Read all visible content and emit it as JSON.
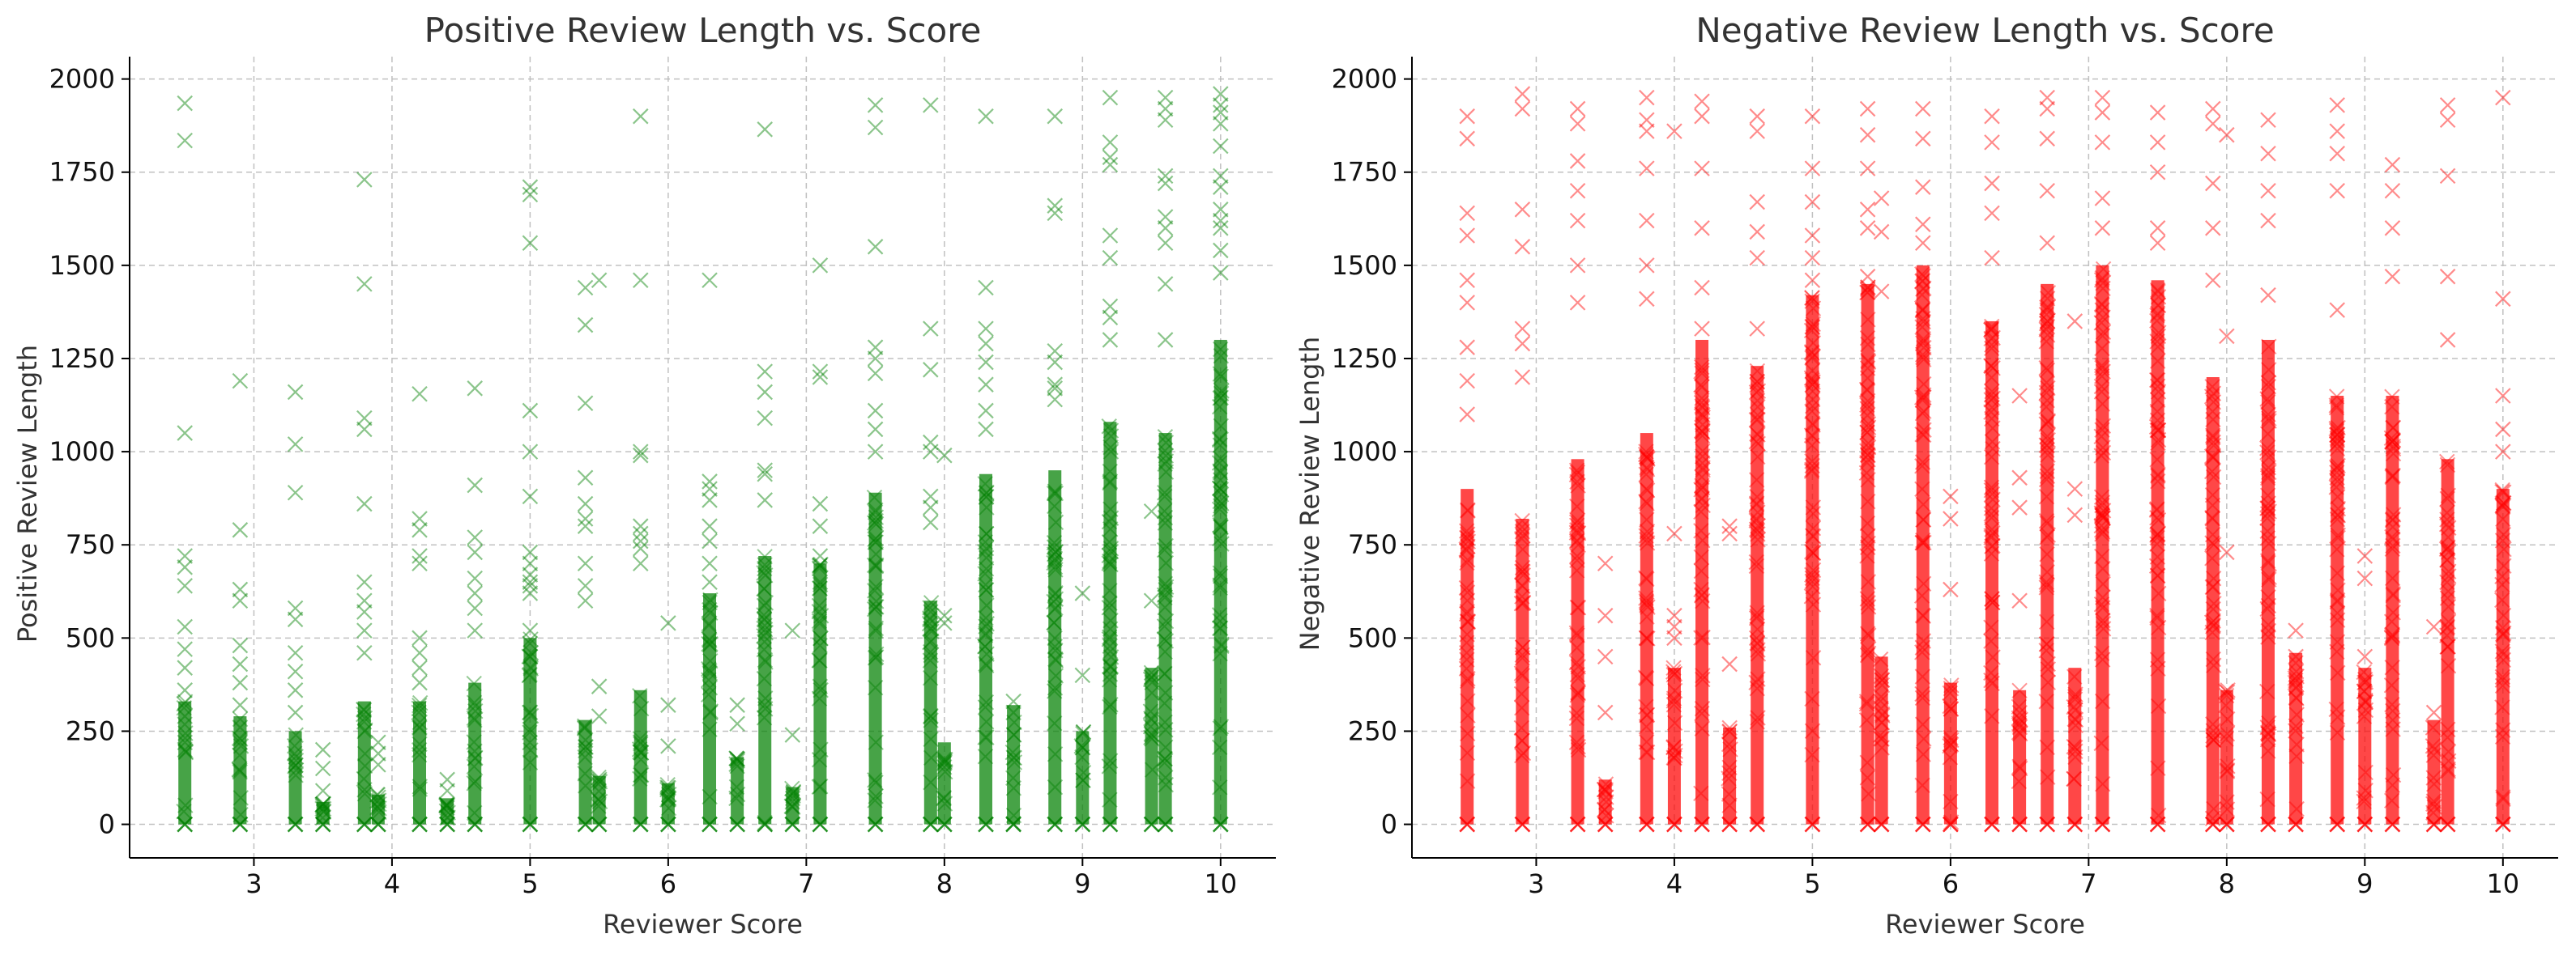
{
  "chart_data": [
    {
      "type": "scatter",
      "title": "Positive Review Length vs. Score",
      "xlabel": "Reviewer Score",
      "ylabel": "Positive Review Length",
      "xlim": [
        2.1,
        10.4
      ],
      "ylim": [
        -90,
        2060
      ],
      "xticks": [
        3,
        4,
        5,
        6,
        7,
        8,
        9,
        10
      ],
      "yticks": [
        0,
        250,
        500,
        750,
        1000,
        1250,
        1500,
        1750,
        2000
      ],
      "grid": true,
      "marker": "x",
      "color": "#008000",
      "opacity": 0.45,
      "score_levels": [
        2.5,
        2.9,
        3.3,
        3.5,
        3.8,
        3.9,
        4.2,
        4.4,
        4.6,
        5.0,
        5.4,
        5.5,
        5.8,
        6.0,
        6.3,
        6.5,
        6.7,
        6.9,
        7.1,
        7.5,
        7.9,
        8.0,
        8.3,
        8.5,
        8.8,
        9.0,
        9.2,
        9.5,
        9.6,
        10.0
      ],
      "x": [
        2.5,
        2.5,
        2.5,
        2.5,
        2.5,
        2.5,
        2.5,
        2.5,
        2.5,
        2.5,
        2.5,
        2.9,
        2.9,
        2.9,
        2.9,
        2.9,
        2.9,
        2.9,
        2.9,
        2.9,
        2.9,
        3.3,
        3.3,
        3.3,
        3.3,
        3.3,
        3.3,
        3.3,
        3.3,
        3.3,
        3.5,
        3.5,
        3.5,
        3.8,
        3.8,
        3.8,
        3.8,
        3.8,
        3.8,
        3.8,
        3.8,
        3.8,
        3.8,
        3.9,
        3.9,
        3.9,
        4.2,
        4.2,
        4.2,
        4.2,
        4.2,
        4.2,
        4.2,
        4.2,
        4.2,
        4.4,
        4.4,
        4.6,
        4.6,
        4.6,
        4.6,
        4.6,
        4.6,
        4.6,
        4.6,
        5.0,
        5.0,
        5.0,
        5.0,
        5.0,
        5.0,
        5.0,
        5.0,
        5.0,
        5.0,
        5.0,
        5.0,
        5.0,
        5.4,
        5.4,
        5.4,
        5.4,
        5.4,
        5.4,
        5.4,
        5.4,
        5.4,
        5.4,
        5.5,
        5.5,
        5.5,
        5.8,
        5.8,
        5.8,
        5.8,
        5.8,
        5.8,
        5.8,
        5.8,
        5.8,
        6.0,
        6.0,
        6.0,
        6.3,
        6.3,
        6.3,
        6.3,
        6.3,
        6.3,
        6.3,
        6.3,
        6.5,
        6.5,
        6.7,
        6.7,
        6.7,
        6.7,
        6.7,
        6.7,
        6.7,
        6.9,
        6.9,
        7.1,
        7.1,
        7.1,
        7.1,
        7.1,
        7.1,
        7.1,
        7.5,
        7.5,
        7.5,
        7.5,
        7.5,
        7.5,
        7.5,
        7.5,
        7.5,
        7.9,
        7.9,
        7.9,
        7.9,
        7.9,
        7.9,
        7.9,
        7.9,
        8.0,
        8.0,
        8.0,
        8.3,
        8.3,
        8.3,
        8.3,
        8.3,
        8.3,
        8.3,
        8.3,
        8.5,
        8.5,
        8.8,
        8.8,
        8.8,
        8.8,
        8.8,
        8.8,
        8.8,
        8.8,
        9.0,
        9.0,
        9.2,
        9.2,
        9.2,
        9.2,
        9.2,
        9.2,
        9.2,
        9.2,
        9.2,
        9.5,
        9.5,
        9.6,
        9.6,
        9.6,
        9.6,
        9.6,
        9.6,
        9.6,
        9.6,
        9.6,
        9.6,
        10.0,
        10.0,
        10.0,
        10.0,
        10.0,
        10.0,
        10.0,
        10.0,
        10.0,
        10.0,
        10.0,
        10.0
      ],
      "y": [
        1935,
        1835,
        1050,
        720,
        690,
        640,
        530,
        470,
        420,
        360,
        290,
        1190,
        790,
        630,
        600,
        480,
        430,
        380,
        320,
        260,
        220,
        1160,
        1020,
        890,
        580,
        550,
        460,
        410,
        360,
        300,
        200,
        150,
        90,
        1730,
        1450,
        1090,
        1060,
        860,
        650,
        600,
        570,
        520,
        460,
        220,
        190,
        160,
        1155,
        820,
        790,
        720,
        700,
        500,
        460,
        420,
        380,
        120,
        90,
        1170,
        910,
        770,
        730,
        660,
        620,
        580,
        520,
        1710,
        1690,
        1560,
        1110,
        1000,
        880,
        730,
        700,
        670,
        650,
        640,
        620,
        520,
        1440,
        1340,
        1130,
        930,
        860,
        820,
        800,
        700,
        640,
        600,
        1460,
        370,
        290,
        1900,
        1460,
        1000,
        990,
        800,
        780,
        760,
        740,
        700,
        540,
        320,
        210,
        1460,
        920,
        900,
        870,
        800,
        760,
        700,
        650,
        320,
        270,
        1865,
        1215,
        1160,
        1090,
        950,
        940,
        870,
        520,
        240,
        1500,
        1215,
        1200,
        860,
        800,
        720,
        650,
        1930,
        1870,
        1550,
        1280,
        1250,
        1210,
        1110,
        1060,
        1000,
        1930,
        1330,
        1220,
        1025,
        1000,
        880,
        850,
        810,
        990,
        560,
        540,
        1900,
        1440,
        1330,
        1290,
        1240,
        1180,
        1110,
        1060,
        330,
        300,
        1900,
        1660,
        1640,
        1270,
        1240,
        1180,
        1170,
        1140,
        620,
        400,
        1950,
        1830,
        1790,
        1770,
        1580,
        1520,
        1390,
        1360,
        1300,
        840,
        600,
        1950,
        1920,
        1890,
        1740,
        1720,
        1630,
        1600,
        1560,
        1450,
        1300,
        1960,
        1930,
        1910,
        1880,
        1820,
        1740,
        1710,
        1650,
        1620,
        1600,
        1540,
        1480
      ],
      "dense_columns": [
        {
          "x": 2.5,
          "y_max": 330
        },
        {
          "x": 2.9,
          "y_max": 290
        },
        {
          "x": 3.3,
          "y_max": 250
        },
        {
          "x": 3.5,
          "y_max": 60
        },
        {
          "x": 3.8,
          "y_max": 330
        },
        {
          "x": 3.9,
          "y_max": 80
        },
        {
          "x": 4.2,
          "y_max": 330
        },
        {
          "x": 4.4,
          "y_max": 70
        },
        {
          "x": 4.6,
          "y_max": 380
        },
        {
          "x": 5.0,
          "y_max": 500
        },
        {
          "x": 5.4,
          "y_max": 280
        },
        {
          "x": 5.5,
          "y_max": 130
        },
        {
          "x": 5.8,
          "y_max": 360
        },
        {
          "x": 6.0,
          "y_max": 110
        },
        {
          "x": 6.3,
          "y_max": 620
        },
        {
          "x": 6.5,
          "y_max": 180
        },
        {
          "x": 6.7,
          "y_max": 720
        },
        {
          "x": 6.9,
          "y_max": 100
        },
        {
          "x": 7.1,
          "y_max": 700
        },
        {
          "x": 7.5,
          "y_max": 890
        },
        {
          "x": 7.9,
          "y_max": 600
        },
        {
          "x": 8.0,
          "y_max": 220
        },
        {
          "x": 8.3,
          "y_max": 940
        },
        {
          "x": 8.5,
          "y_max": 320
        },
        {
          "x": 8.8,
          "y_max": 950
        },
        {
          "x": 9.0,
          "y_max": 250
        },
        {
          "x": 9.2,
          "y_max": 1080
        },
        {
          "x": 9.5,
          "y_max": 420
        },
        {
          "x": 9.6,
          "y_max": 1050
        },
        {
          "x": 10.0,
          "y_max": 1300
        }
      ]
    },
    {
      "type": "scatter",
      "title": "Negative Review Length vs. Score",
      "xlabel": "Reviewer Score",
      "ylabel": "Negative Review Length",
      "xlim": [
        2.1,
        10.4
      ],
      "ylim": [
        -90,
        2060
      ],
      "xticks": [
        3,
        4,
        5,
        6,
        7,
        8,
        9,
        10
      ],
      "yticks": [
        0,
        250,
        500,
        750,
        1000,
        1250,
        1500,
        1750,
        2000
      ],
      "grid": true,
      "marker": "x",
      "color": "#ff0000",
      "opacity": 0.45,
      "score_levels": [
        2.5,
        2.9,
        3.3,
        3.5,
        3.8,
        4.0,
        4.2,
        4.4,
        4.6,
        5.0,
        5.4,
        5.5,
        5.8,
        6.0,
        6.3,
        6.5,
        6.7,
        6.9,
        7.1,
        7.5,
        7.9,
        8.0,
        8.3,
        8.5,
        8.8,
        9.0,
        9.2,
        9.5,
        9.6,
        10.0
      ],
      "x": [
        2.5,
        2.5,
        2.5,
        2.5,
        2.5,
        2.5,
        2.5,
        2.5,
        2.5,
        2.9,
        2.9,
        2.9,
        2.9,
        2.9,
        2.9,
        2.9,
        3.3,
        3.3,
        3.3,
        3.3,
        3.3,
        3.3,
        3.3,
        3.5,
        3.5,
        3.5,
        3.5,
        3.8,
        3.8,
        3.8,
        3.8,
        3.8,
        3.8,
        3.8,
        4.0,
        4.0,
        4.0,
        4.0,
        4.0,
        4.2,
        4.2,
        4.2,
        4.2,
        4.2,
        4.2,
        4.4,
        4.4,
        4.4,
        4.6,
        4.6,
        4.6,
        4.6,
        4.6,
        4.6,
        5.0,
        5.0,
        5.0,
        5.0,
        5.0,
        5.0,
        5.4,
        5.4,
        5.4,
        5.4,
        5.4,
        5.4,
        5.5,
        5.5,
        5.5,
        5.8,
        5.8,
        5.8,
        5.8,
        5.8,
        6.0,
        6.0,
        6.0,
        6.3,
        6.3,
        6.3,
        6.3,
        6.3,
        6.5,
        6.5,
        6.5,
        6.5,
        6.7,
        6.7,
        6.7,
        6.7,
        6.7,
        6.9,
        6.9,
        6.9,
        7.1,
        7.1,
        7.1,
        7.1,
        7.1,
        7.5,
        7.5,
        7.5,
        7.5,
        7.5,
        7.9,
        7.9,
        7.9,
        7.9,
        7.9,
        8.0,
        8.0,
        8.0,
        8.3,
        8.3,
        8.3,
        8.3,
        8.3,
        8.5,
        8.5,
        8.8,
        8.8,
        8.8,
        8.8,
        8.8,
        9.0,
        9.0,
        9.0,
        9.2,
        9.2,
        9.2,
        9.2,
        9.5,
        9.5,
        9.6,
        9.6,
        9.6,
        9.6,
        9.6,
        10.0,
        10.0,
        10.0,
        10.0,
        10.0
      ],
      "y": [
        1900,
        1840,
        1640,
        1580,
        1460,
        1400,
        1280,
        1190,
        1100,
        1960,
        1920,
        1650,
        1550,
        1330,
        1290,
        1200,
        1920,
        1880,
        1780,
        1700,
        1620,
        1500,
        1400,
        700,
        560,
        450,
        300,
        1950,
        1890,
        1860,
        1760,
        1620,
        1500,
        1410,
        1860,
        780,
        560,
        530,
        500,
        1940,
        1900,
        1760,
        1600,
        1440,
        1330,
        800,
        780,
        430,
        1900,
        1860,
        1670,
        1590,
        1520,
        1330,
        1900,
        1760,
        1670,
        1580,
        1520,
        1460,
        1920,
        1850,
        1760,
        1650,
        1600,
        1470,
        1680,
        1590,
        1430,
        1920,
        1840,
        1710,
        1610,
        1560,
        880,
        820,
        630,
        1900,
        1830,
        1720,
        1640,
        1520,
        1150,
        930,
        850,
        600,
        1950,
        1920,
        1840,
        1700,
        1560,
        1350,
        900,
        830,
        1950,
        1910,
        1830,
        1680,
        1600,
        1910,
        1830,
        1750,
        1600,
        1560,
        1920,
        1880,
        1720,
        1600,
        1460,
        1850,
        1310,
        730,
        1890,
        1800,
        1700,
        1620,
        1420,
        520,
        450,
        1930,
        1860,
        1800,
        1700,
        1380,
        720,
        660,
        450,
        1770,
        1700,
        1600,
        1470,
        530,
        300,
        1930,
        1890,
        1740,
        1470,
        1300,
        1950,
        1410,
        1150,
        1060,
        1000
      ],
      "dense_columns": [
        {
          "x": 2.5,
          "y_max": 900
        },
        {
          "x": 2.9,
          "y_max": 820
        },
        {
          "x": 3.3,
          "y_max": 980
        },
        {
          "x": 3.5,
          "y_max": 120
        },
        {
          "x": 3.8,
          "y_max": 1050
        },
        {
          "x": 4.0,
          "y_max": 420
        },
        {
          "x": 4.2,
          "y_max": 1300
        },
        {
          "x": 4.4,
          "y_max": 260
        },
        {
          "x": 4.6,
          "y_max": 1230
        },
        {
          "x": 5.0,
          "y_max": 1420
        },
        {
          "x": 5.4,
          "y_max": 1450
        },
        {
          "x": 5.5,
          "y_max": 450
        },
        {
          "x": 5.8,
          "y_max": 1500
        },
        {
          "x": 6.0,
          "y_max": 380
        },
        {
          "x": 6.3,
          "y_max": 1350
        },
        {
          "x": 6.5,
          "y_max": 360
        },
        {
          "x": 6.7,
          "y_max": 1450
        },
        {
          "x": 6.9,
          "y_max": 420
        },
        {
          "x": 7.1,
          "y_max": 1500
        },
        {
          "x": 7.5,
          "y_max": 1460
        },
        {
          "x": 7.9,
          "y_max": 1200
        },
        {
          "x": 8.0,
          "y_max": 360
        },
        {
          "x": 8.3,
          "y_max": 1300
        },
        {
          "x": 8.5,
          "y_max": 460
        },
        {
          "x": 8.8,
          "y_max": 1150
        },
        {
          "x": 9.0,
          "y_max": 420
        },
        {
          "x": 9.2,
          "y_max": 1150
        },
        {
          "x": 9.5,
          "y_max": 280
        },
        {
          "x": 9.6,
          "y_max": 980
        },
        {
          "x": 10.0,
          "y_max": 900
        }
      ]
    }
  ]
}
